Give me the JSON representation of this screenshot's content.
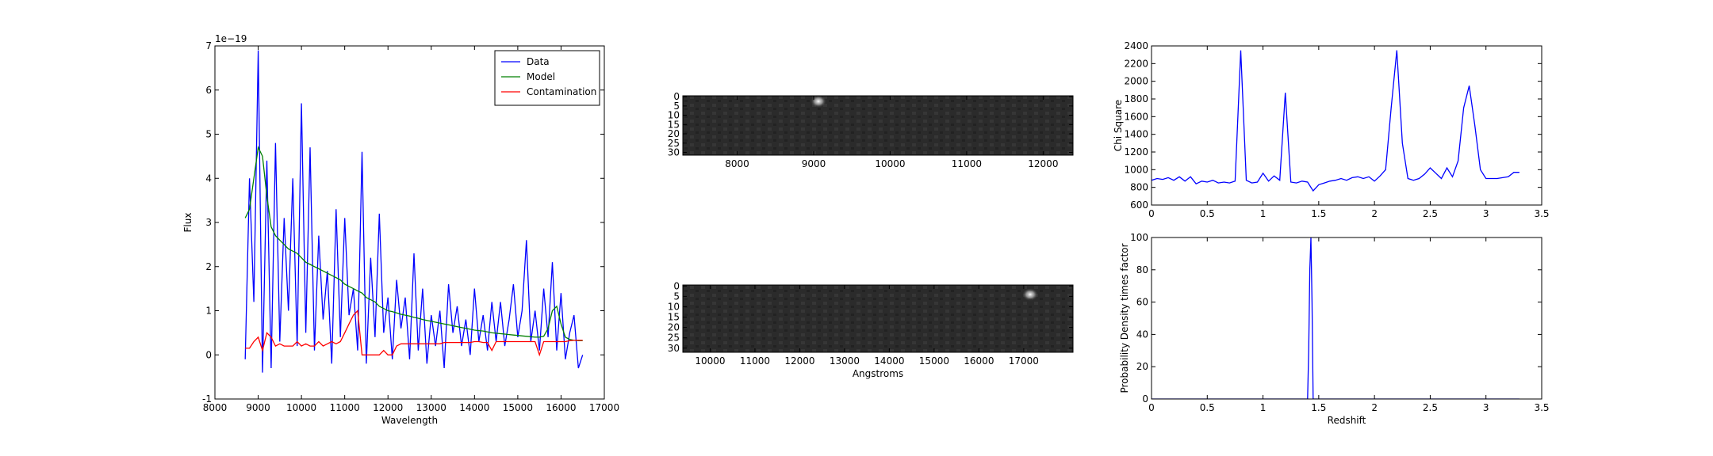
{
  "chart_data": [
    {
      "type": "line",
      "offset_label": "1e−19",
      "xlabel": "Wavelength",
      "ylabel": "Flux",
      "xlim": [
        8000,
        17000
      ],
      "xticks": [
        8000,
        9000,
        10000,
        11000,
        12000,
        13000,
        14000,
        15000,
        16000,
        17000
      ],
      "ylim": [
        -1,
        7
      ],
      "yticks": [
        -1,
        0,
        1,
        2,
        3,
        4,
        5,
        6,
        7
      ],
      "legend": "upper right",
      "x": [
        8700,
        8800,
        8900,
        9000,
        9100,
        9200,
        9300,
        9400,
        9500,
        9600,
        9700,
        9800,
        9900,
        10000,
        10100,
        10200,
        10300,
        10400,
        10500,
        10600,
        10700,
        10800,
        10900,
        11000,
        11100,
        11200,
        11300,
        11400,
        11500,
        11600,
        11700,
        11800,
        11900,
        12000,
        12100,
        12200,
        12300,
        12400,
        12500,
        12600,
        12700,
        12800,
        12900,
        13000,
        13100,
        13200,
        13300,
        13400,
        13500,
        13600,
        13700,
        13800,
        13900,
        14000,
        14100,
        14200,
        14300,
        14400,
        14500,
        14600,
        14700,
        14800,
        14900,
        15000,
        15100,
        15200,
        15300,
        15400,
        15500,
        15600,
        15700,
        15800,
        15900,
        16000,
        16100,
        16200,
        16300,
        16400,
        16500
      ],
      "series": [
        {
          "name": "Data",
          "color": "#0000ff",
          "values": [
            -0.1,
            4.0,
            1.2,
            6.9,
            -0.4,
            4.4,
            -0.3,
            4.8,
            0.3,
            3.1,
            1.0,
            4.0,
            0.2,
            5.7,
            0.5,
            4.7,
            0.1,
            2.7,
            0.8,
            1.9,
            -0.2,
            3.3,
            0.4,
            3.1,
            0.9,
            1.5,
            0.1,
            4.6,
            -0.2,
            2.2,
            0.4,
            3.2,
            0.5,
            1.3,
            -0.1,
            1.7,
            0.6,
            1.3,
            -0.1,
            2.3,
            0.1,
            1.5,
            -0.2,
            0.9,
            0.2,
            1.0,
            -0.3,
            1.6,
            0.5,
            1.1,
            0.2,
            0.8,
            0.0,
            1.5,
            0.3,
            0.9,
            0.1,
            1.2,
            0.3,
            1.2,
            0.2,
            0.8,
            1.6,
            0.4,
            1.0,
            2.6,
            0.3,
            1.0,
            0.1,
            1.5,
            0.4,
            2.1,
            0.1,
            1.4,
            -0.1,
            0.5,
            0.9,
            -0.3,
            0.0
          ]
        },
        {
          "name": "Model",
          "color": "#008000",
          "values": [
            3.1,
            3.3,
            4.0,
            4.7,
            4.5,
            3.6,
            2.9,
            2.7,
            2.6,
            2.5,
            2.4,
            2.35,
            2.3,
            2.2,
            2.1,
            2.05,
            2.0,
            1.95,
            1.9,
            1.85,
            1.8,
            1.75,
            1.7,
            1.6,
            1.55,
            1.5,
            1.45,
            1.4,
            1.3,
            1.25,
            1.2,
            1.1,
            1.05,
            1.0,
            0.98,
            0.95,
            0.92,
            0.9,
            0.88,
            0.85,
            0.83,
            0.8,
            0.78,
            0.76,
            0.74,
            0.72,
            0.7,
            0.68,
            0.66,
            0.64,
            0.62,
            0.6,
            0.58,
            0.56,
            0.55,
            0.54,
            0.52,
            0.5,
            0.49,
            0.48,
            0.47,
            0.46,
            0.45,
            0.44,
            0.43,
            0.42,
            0.41,
            0.4,
            0.4,
            0.42,
            0.6,
            1.0,
            1.1,
            0.7,
            0.4,
            0.35,
            0.33,
            0.32,
            0.32
          ]
        },
        {
          "name": "Contamination",
          "color": "#ff0000",
          "values": [
            0.15,
            0.15,
            0.3,
            0.4,
            0.1,
            0.5,
            0.4,
            0.2,
            0.25,
            0.2,
            0.2,
            0.2,
            0.3,
            0.2,
            0.25,
            0.2,
            0.2,
            0.3,
            0.2,
            0.25,
            0.3,
            0.25,
            0.3,
            0.5,
            0.7,
            0.9,
            1.0,
            0.0,
            0.0,
            0.0,
            0.0,
            0.0,
            0.1,
            0.0,
            0.0,
            0.2,
            0.25,
            0.25,
            0.25,
            0.25,
            0.25,
            0.25,
            0.25,
            0.25,
            0.25,
            0.25,
            0.28,
            0.28,
            0.28,
            0.28,
            0.28,
            0.28,
            0.28,
            0.3,
            0.3,
            0.28,
            0.28,
            0.1,
            0.3,
            0.3,
            0.3,
            0.3,
            0.3,
            0.3,
            0.3,
            0.3,
            0.3,
            0.3,
            0.0,
            0.3,
            0.3,
            0.3,
            0.3,
            0.3,
            0.3,
            0.32,
            0.33,
            0.33,
            0.33
          ]
        }
      ]
    },
    {
      "type": "image",
      "xlim": [
        7290,
        12390
      ],
      "xticks": [
        8000,
        9000,
        10000,
        11000,
        12000
      ],
      "ylim": [
        31.5,
        -0.5
      ],
      "yticks": [
        0,
        5,
        10,
        15,
        20,
        25,
        30
      ]
    },
    {
      "type": "image",
      "xlabel": "Angstroms",
      "xlim": [
        9390,
        18100
      ],
      "xticks": [
        10000,
        11000,
        12000,
        13000,
        14000,
        15000,
        16000,
        17000
      ],
      "ylim": [
        32,
        -0.5
      ],
      "yticks": [
        0,
        5,
        10,
        15,
        20,
        25,
        30
      ]
    },
    {
      "type": "line",
      "ylabel": "Chi Square",
      "xlim": [
        0,
        3.5
      ],
      "xticks": [
        0.0,
        0.5,
        1.0,
        1.5,
        2.0,
        2.5,
        3.0,
        3.5
      ],
      "ylim": [
        600,
        2400
      ],
      "yticks": [
        600,
        800,
        1000,
        1200,
        1400,
        1600,
        1800,
        2000,
        2200,
        2400
      ],
      "x": [
        0,
        0.05,
        0.1,
        0.15,
        0.2,
        0.25,
        0.3,
        0.35,
        0.4,
        0.45,
        0.5,
        0.55,
        0.6,
        0.65,
        0.7,
        0.75,
        0.8,
        0.85,
        0.9,
        0.95,
        1.0,
        1.05,
        1.1,
        1.15,
        1.2,
        1.25,
        1.3,
        1.35,
        1.4,
        1.45,
        1.5,
        1.55,
        1.6,
        1.65,
        1.7,
        1.75,
        1.8,
        1.85,
        1.9,
        1.95,
        2.0,
        2.05,
        2.1,
        2.15,
        2.2,
        2.25,
        2.3,
        2.35,
        2.4,
        2.45,
        2.5,
        2.55,
        2.6,
        2.65,
        2.7,
        2.75,
        2.8,
        2.85,
        2.9,
        2.95,
        3.0,
        3.05,
        3.1,
        3.15,
        3.2,
        3.25,
        3.3
      ],
      "series": [
        {
          "color": "#0000ff",
          "values": [
            880,
            900,
            890,
            910,
            880,
            920,
            870,
            920,
            840,
            870,
            860,
            880,
            850,
            860,
            850,
            870,
            2350,
            880,
            850,
            860,
            960,
            870,
            930,
            880,
            1870,
            860,
            850,
            870,
            860,
            760,
            830,
            850,
            870,
            880,
            900,
            880,
            910,
            920,
            900,
            920,
            870,
            930,
            1000,
            1700,
            2350,
            1300,
            900,
            880,
            900,
            950,
            1020,
            960,
            900,
            1020,
            920,
            1100,
            1700,
            1950,
            1500,
            1000,
            900,
            900,
            900,
            910,
            920,
            970,
            970
          ]
        }
      ]
    },
    {
      "type": "line",
      "ylabel": "Probability Density times factor",
      "xlabel": "Redshift",
      "xlim": [
        0,
        3.5
      ],
      "xticks": [
        0.0,
        0.5,
        1.0,
        1.5,
        2.0,
        2.5,
        3.0,
        3.5
      ],
      "ylim": [
        0,
        100
      ],
      "yticks": [
        0,
        20,
        40,
        60,
        80,
        100
      ],
      "x": [
        0,
        1.4,
        1.41,
        1.42,
        1.43,
        1.44,
        1.45,
        3.3
      ],
      "series": [
        {
          "color": "#0000ff",
          "values": [
            0,
            0,
            30,
            80,
            100,
            60,
            0,
            0
          ]
        }
      ]
    }
  ]
}
